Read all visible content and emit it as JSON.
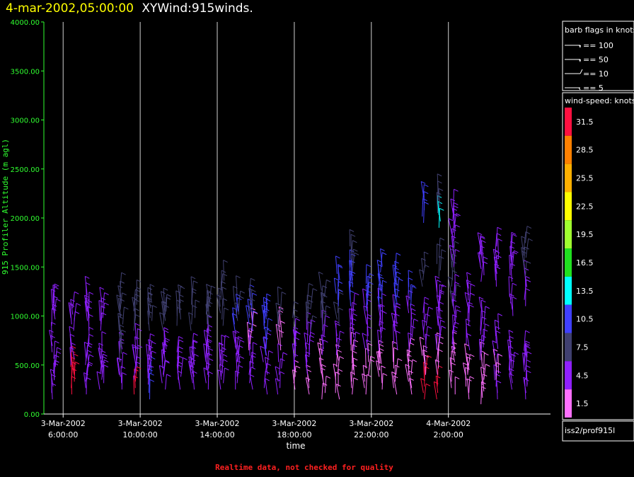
{
  "header": {
    "date": "4-mar-2002,05:00:00",
    "title": "XYWind:915winds."
  },
  "legend": {
    "barb_title": "barb flags in knots",
    "barbs": [
      {
        "label": "== 100",
        "kind": "flag100"
      },
      {
        "label": "== 50",
        "kind": "flag50"
      },
      {
        "label": "== 10",
        "kind": "full"
      },
      {
        "label": "== 5",
        "kind": "half"
      }
    ],
    "speed_title": "wind-speed: knots",
    "color_scale": [
      {
        "label": "31.5",
        "color": "#ff1040"
      },
      {
        "label": "28.5",
        "color": "#ff8000"
      },
      {
        "label": "25.5",
        "color": "#ffb000"
      },
      {
        "label": "22.5",
        "color": "#ffff00"
      },
      {
        "label": "19.5",
        "color": "#a0ff30"
      },
      {
        "label": "16.5",
        "color": "#20e020"
      },
      {
        "label": "13.5",
        "color": "#00ffff"
      },
      {
        "label": "10.5",
        "color": "#4040ff"
      },
      {
        "label": "7.5",
        "color": "#404070"
      },
      {
        "label": "4.5",
        "color": "#9020ff"
      },
      {
        "label": "1.5",
        "color": "#ff70ff"
      }
    ],
    "source": "iss2/prof915l"
  },
  "footer": {
    "note": "Realtime data, not checked for quality"
  },
  "chart_data": {
    "type": "scatter",
    "subtype": "wind-barb time-height profile",
    "title": "XYWind:915winds.",
    "xlabel": "time",
    "ylabel": "915 Profiler Altitude (m agl)",
    "ylim": [
      0,
      4000
    ],
    "yticks": [
      "0.00",
      "500.00",
      "1000.00",
      "1500.00",
      "2000.00",
      "2500.00",
      "3000.00",
      "3500.00",
      "4000.00"
    ],
    "xlim": [
      5.0,
      31.3
    ],
    "xticks": [
      {
        "date": "3-Mar-2002",
        "time": "6:00:00",
        "hour": 6
      },
      {
        "date": "3-Mar-2002",
        "time": "10:00:00",
        "hour": 10
      },
      {
        "date": "3-Mar-2002",
        "time": "14:00:00",
        "hour": 14
      },
      {
        "date": "3-Mar-2002",
        "time": "18:00:00",
        "hour": 18
      },
      {
        "date": "3-Mar-2002",
        "time": "22:00:00",
        "hour": 22
      },
      {
        "date": "4-Mar-2002",
        "time": "2:00:00",
        "hour": 26
      }
    ],
    "grid": "vertical",
    "legend": "right",
    "hours": [
      5.5,
      6.5,
      7.25,
      8.0,
      9.0,
      9.75,
      10.5,
      11.25,
      12.0,
      12.75,
      13.5,
      14.25,
      15.0,
      15.75,
      16.5,
      17.25,
      18.0,
      18.75,
      19.5,
      20.25,
      21.0,
      21.75,
      22.5,
      23.25,
      24.0,
      24.75,
      25.5,
      26.25,
      27.0,
      27.75,
      28.5,
      29.25,
      30.0
    ],
    "samples": [
      {
        "h": 5.5,
        "alt": [
          150,
          350,
          500,
          900,
          1000
        ],
        "spd": [
          4.5,
          4.5,
          4.5,
          4.5,
          4.5
        ]
      },
      {
        "h": 6.5,
        "alt": [
          200,
          350,
          500,
          850,
          950
        ],
        "spd": [
          31.5,
          31.5,
          4.5,
          4.5,
          4.5
        ]
      },
      {
        "h": 7.25,
        "alt": [
          200,
          350,
          500,
          850,
          950
        ],
        "spd": [
          4.5,
          4.5,
          4.5,
          4.5,
          4.5
        ]
      },
      {
        "h": 8.0,
        "alt": [
          250,
          350,
          500,
          850,
          950
        ],
        "spd": [
          4.5,
          4.5,
          4.5,
          4.5,
          4.5
        ]
      },
      {
        "h": 9.0,
        "alt": [
          250,
          400,
          550,
          850,
          1000
        ],
        "spd": [
          4.5,
          4.5,
          7.5,
          7.5,
          7.5
        ]
      },
      {
        "h": 9.75,
        "alt": [
          200,
          350,
          500,
          850,
          1050
        ],
        "spd": [
          31.5,
          4.5,
          4.5,
          7.5,
          7.5
        ]
      },
      {
        "h": 10.5,
        "alt": [
          150,
          300,
          450,
          850,
          950
        ],
        "spd": [
          10.5,
          4.5,
          4.5,
          7.5,
          7.5
        ]
      },
      {
        "h": 11.25,
        "alt": [
          250,
          400,
          550,
          850,
          950
        ],
        "spd": [
          4.5,
          4.5,
          4.5,
          7.5,
          7.5
        ]
      },
      {
        "h": 12.0,
        "alt": [
          250,
          350,
          500,
          900,
          1000
        ],
        "spd": [
          4.5,
          4.5,
          4.5,
          7.5,
          7.5
        ]
      },
      {
        "h": 12.75,
        "alt": [
          250,
          350,
          500,
          850,
          1050
        ],
        "spd": [
          4.5,
          4.5,
          4.5,
          7.5,
          7.5
        ]
      },
      {
        "h": 13.5,
        "alt": [
          250,
          400,
          550,
          850,
          950
        ],
        "spd": [
          4.5,
          4.5,
          4.5,
          7.5,
          7.5
        ]
      },
      {
        "h": 14.25,
        "alt": [
          250,
          350,
          500,
          900,
          1100
        ],
        "spd": [
          4.5,
          4.5,
          4.5,
          7.5,
          7.5
        ]
      },
      {
        "h": 15.0,
        "alt": [
          250,
          400,
          550,
          850,
          950
        ],
        "spd": [
          4.5,
          4.5,
          4.5,
          10.5,
          7.5
        ]
      },
      {
        "h": 15.75,
        "alt": [
          250,
          400,
          650,
          850,
          1000
        ],
        "spd": [
          4.5,
          4.5,
          1.5,
          10.5,
          7.5
        ]
      },
      {
        "h": 16.5,
        "alt": [
          200,
          400,
          600,
          800,
          900
        ],
        "spd": [
          4.5,
          4.5,
          10.5,
          10.5,
          10.5
        ]
      },
      {
        "h": 17.25,
        "alt": [
          200,
          400,
          650,
          850
        ],
        "spd": [
          4.5,
          4.5,
          1.5,
          7.5
        ]
      },
      {
        "h": 18.0,
        "alt": [
          250,
          450,
          650,
          850
        ],
        "spd": [
          1.5,
          4.5,
          4.5,
          7.5
        ]
      },
      {
        "h": 18.75,
        "alt": [
          200,
          400,
          600,
          850,
          950
        ],
        "spd": [
          1.5,
          4.5,
          4.5,
          7.5,
          7.5
        ]
      },
      {
        "h": 19.5,
        "alt": [
          150,
          350,
          600,
          850,
          1000
        ],
        "spd": [
          1.5,
          1.5,
          4.5,
          7.5,
          7.5
        ]
      },
      {
        "h": 20.25,
        "alt": [
          150,
          350,
          600,
          900,
          1100,
          1300
        ],
        "spd": [
          1.5,
          1.5,
          4.5,
          7.5,
          10.5,
          10.5
        ]
      },
      {
        "h": 21.0,
        "alt": [
          200,
          450,
          650,
          900,
          1100,
          1300,
          1450
        ],
        "spd": [
          1.5,
          1.5,
          4.5,
          4.5,
          10.5,
          10.5,
          7.5
        ]
      },
      {
        "h": 21.75,
        "alt": [
          200,
          400,
          600,
          850,
          1050,
          1200
        ],
        "spd": [
          1.5,
          1.5,
          4.5,
          4.5,
          10.5,
          10.5
        ]
      },
      {
        "h": 22.5,
        "alt": [
          250,
          450,
          650,
          900,
          1050,
          1250
        ],
        "spd": [
          1.5,
          1.5,
          4.5,
          4.5,
          10.5,
          10.5
        ]
      },
      {
        "h": 23.25,
        "alt": [
          200,
          400,
          650,
          850,
          1050,
          1200
        ],
        "spd": [
          1.5,
          1.5,
          4.5,
          4.5,
          10.5,
          10.5
        ]
      },
      {
        "h": 24.0,
        "alt": [
          200,
          400,
          650,
          900,
          1100
        ],
        "spd": [
          1.5,
          1.5,
          4.5,
          4.5,
          10.5
        ]
      },
      {
        "h": 24.75,
        "alt": [
          150,
          400,
          650,
          900,
          1300,
          1950
        ],
        "spd": [
          31.5,
          1.5,
          4.5,
          4.5,
          7.5,
          10.5
        ]
      },
      {
        "h": 25.5,
        "alt": [
          150,
          400,
          650,
          900,
          1050,
          1400,
          1900,
          2050
        ],
        "spd": [
          31.5,
          1.5,
          4.5,
          4.5,
          4.5,
          7.5,
          13.5,
          7.5
        ]
      },
      {
        "h": 26.25,
        "alt": [
          200,
          400,
          650,
          950,
          1100,
          1300,
          1500,
          1700,
          1850
        ],
        "spd": [
          1.5,
          1.5,
          4.5,
          4.5,
          7.5,
          7.5,
          4.5,
          4.5,
          4.5
        ]
      },
      {
        "h": 27.0,
        "alt": [
          150,
          400,
          650,
          900,
          1150
        ],
        "spd": [
          1.5,
          1.5,
          4.5,
          4.5,
          4.5
        ]
      },
      {
        "h": 27.75,
        "alt": [
          100,
          350,
          550,
          850,
          1350,
          1500
        ],
        "spd": [
          1.5,
          1.5,
          4.5,
          4.5,
          4.5,
          4.5
        ]
      },
      {
        "h": 28.5,
        "alt": [
          150,
          350,
          600,
          1300,
          1450
        ],
        "spd": [
          4.5,
          1.5,
          4.5,
          4.5,
          4.5
        ]
      },
      {
        "h": 29.25,
        "alt": [
          250,
          400,
          550,
          1000,
          1350,
          1500
        ],
        "spd": [
          4.5,
          4.5,
          4.5,
          4.5,
          4.5,
          4.5
        ]
      },
      {
        "h": 30.0,
        "alt": [
          150,
          300,
          450,
          1100,
          1400,
          1550
        ],
        "spd": [
          4.5,
          4.5,
          4.5,
          4.5,
          7.5,
          7.5
        ]
      }
    ]
  }
}
